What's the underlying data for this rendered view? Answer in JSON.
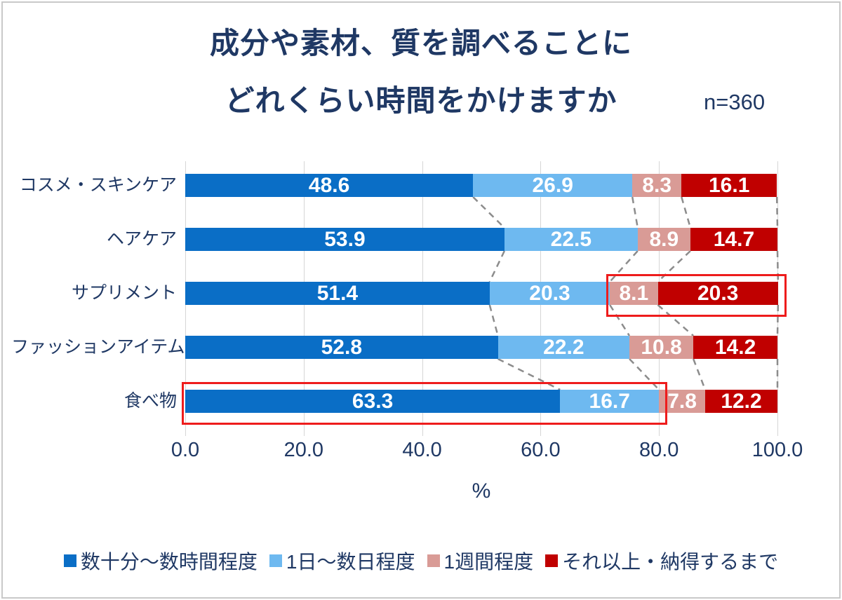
{
  "title": {
    "line1": "成分や素材、質を調べることに",
    "line2": "どれくらい時間をかけますか",
    "sample_size": "n=360"
  },
  "chart_data": {
    "type": "bar",
    "orientation": "horizontal",
    "stacked": true,
    "title": "成分や素材、質を調べることにどれくらい時間をかけますか",
    "sample_size": "n=360",
    "categories": [
      "コスメ・スキンケア",
      "ヘアケア",
      "サプリメント",
      "ファッションアイテム",
      "食べ物"
    ],
    "series": [
      {
        "name": "数十分～数時間程度",
        "color": "#0a6ec6",
        "values": [
          48.6,
          53.9,
          51.4,
          52.8,
          63.3
        ]
      },
      {
        "name": "1日～数日程度",
        "color": "#6eb9f0",
        "values": [
          26.9,
          22.5,
          20.3,
          22.2,
          16.7
        ]
      },
      {
        "name": "1週間程度",
        "color": "#d99b96",
        "values": [
          8.3,
          8.9,
          8.1,
          10.8,
          7.8
        ]
      },
      {
        "name": "それ以上・納得するまで",
        "color": "#c00000",
        "values": [
          16.1,
          14.7,
          20.3,
          14.2,
          12.2
        ]
      }
    ],
    "xlabel": "%",
    "x_ticks": [
      "0.0",
      "20.0",
      "40.0",
      "60.0",
      "80.0",
      "100.0"
    ],
    "xlim": [
      0,
      100
    ],
    "grid": true,
    "gridline_color": "#d6d6d6",
    "value_label_color": "#ffffff",
    "text_color": "#1f3864",
    "connector_style": "dashed lines linking stacked-segment boundaries between adjacent bars",
    "connector_color": "#8c8c8c",
    "legend_position": "bottom",
    "highlights": [
      {
        "category": "サプリメント",
        "segment_start": 2,
        "segment_end": 3,
        "color": "#ee1c1c"
      },
      {
        "category": "食べ物",
        "segment_start": 0,
        "segment_end": 1,
        "color": "#ee1c1c"
      }
    ]
  }
}
